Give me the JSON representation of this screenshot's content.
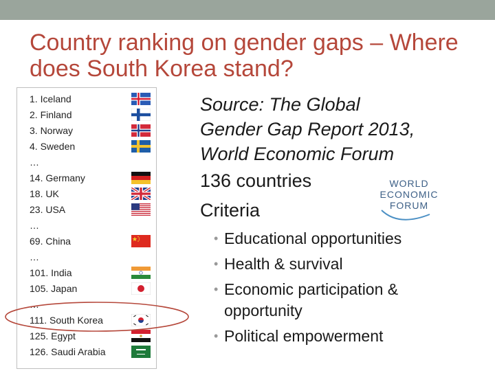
{
  "slide": {
    "title": "Country ranking on gender gaps – Where does South Korea stand?",
    "ranking": [
      {
        "label": "1. Iceland",
        "flag": "iceland-flag-icon"
      },
      {
        "label": "2. Finland",
        "flag": "finland-flag-icon"
      },
      {
        "label": "3. Norway",
        "flag": "norway-flag-icon"
      },
      {
        "label": "4. Sweden",
        "flag": "sweden-flag-icon"
      },
      {
        "label": "…",
        "flag": ""
      },
      {
        "label": "14. Germany",
        "flag": "germany-flag-icon"
      },
      {
        "label": "18. UK",
        "flag": "uk-flag-icon"
      },
      {
        "label": "23. USA",
        "flag": "usa-flag-icon"
      },
      {
        "label": "…",
        "flag": ""
      },
      {
        "label": "69. China",
        "flag": "china-flag-icon"
      },
      {
        "label": "…",
        "flag": ""
      },
      {
        "label": "101. India",
        "flag": "india-flag-icon"
      },
      {
        "label": "105. Japan",
        "flag": "japan-flag-icon"
      },
      {
        "label": "…",
        "flag": ""
      },
      {
        "label": "111. South Korea",
        "flag": "south-korea-flag-icon"
      },
      {
        "label": "125. Egypt",
        "flag": "egypt-flag-icon"
      },
      {
        "label": "126. Saudi Arabia",
        "flag": "saudi-arabia-flag-icon"
      }
    ],
    "source_lines": [
      "Source: The Global",
      "Gender Gap Report 2013,",
      "World Economic Forum"
    ],
    "countries": "136 countries",
    "criteria_heading": "Criteria",
    "criteria": [
      "Educational opportunities",
      "Health & survival",
      "Economic participation & opportunity",
      "Political empowerment"
    ],
    "bullet_glyph": "•",
    "logo": {
      "lines": [
        "WORLD",
        "ECONOMIC",
        "FORUM"
      ],
      "icon": "world-economic-forum-logo"
    },
    "colors": {
      "title": "#b5473a",
      "top_bar": "#9aa59c",
      "highlight_ellipse": "#b5473a"
    }
  }
}
